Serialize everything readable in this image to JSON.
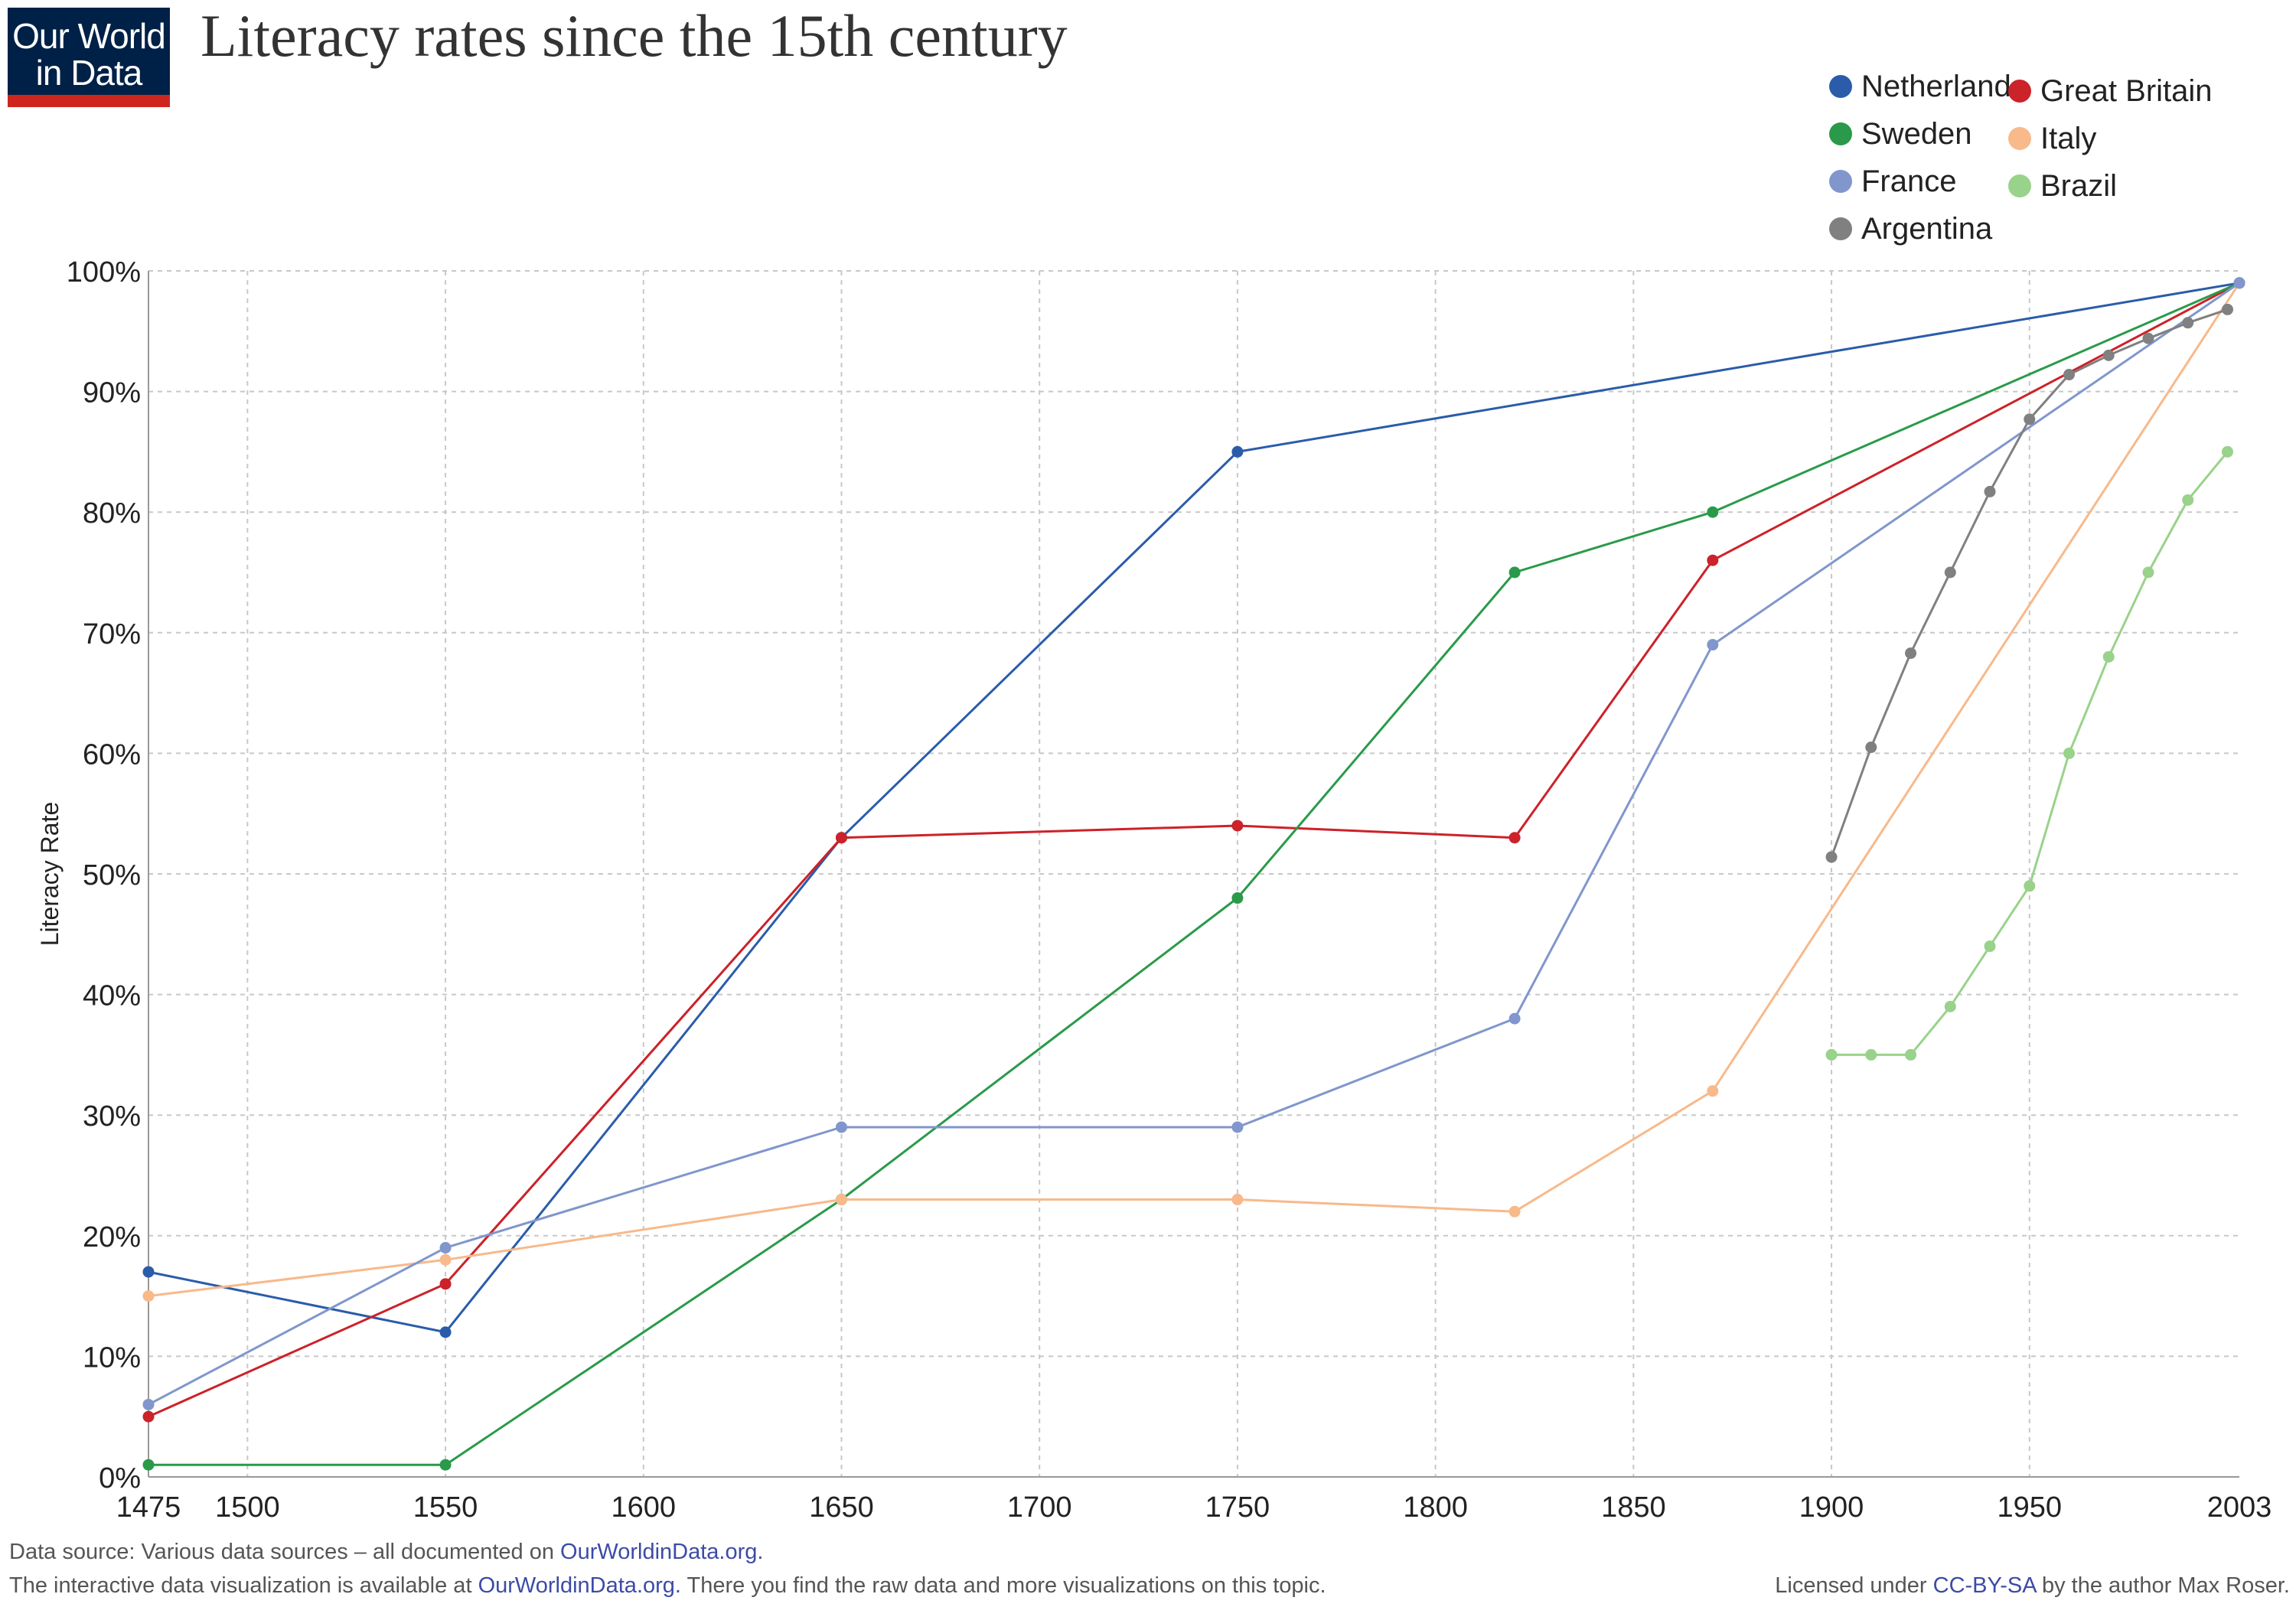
{
  "logo": {
    "line1": "Our World",
    "line2": "in Data"
  },
  "chart_data": {
    "type": "line",
    "title": "Literacy rates since the 15th century",
    "ylabel": "Literacy Rate",
    "xlabel": "",
    "xlim": [
      1475,
      2003
    ],
    "ylim": [
      0,
      100
    ],
    "grid": true,
    "x_ticks": [
      "1475",
      "1500",
      "1550",
      "1600",
      "1650",
      "1700",
      "1750",
      "1800",
      "1850",
      "1900",
      "1950",
      "2003"
    ],
    "y_ticks": [
      "0%",
      "10%",
      "20%",
      "30%",
      "40%",
      "50%",
      "60%",
      "70%",
      "80%",
      "90%",
      "100%"
    ],
    "legend_position": "top-right",
    "series": [
      {
        "name": "Netherlands",
        "color": "#2a5caa",
        "x": [
          1475,
          1550,
          1650,
          1750,
          2003
        ],
        "y": [
          17,
          12,
          53,
          85,
          99
        ]
      },
      {
        "name": "Great Britain",
        "color": "#cc2229",
        "x": [
          1475,
          1550,
          1650,
          1750,
          1820,
          1870,
          2003
        ],
        "y": [
          5,
          16,
          53,
          54,
          53,
          76,
          99
        ]
      },
      {
        "name": "Sweden",
        "color": "#2a9a4a",
        "x": [
          1475,
          1550,
          1650,
          1750,
          1820,
          1870,
          2003
        ],
        "y": [
          1,
          1,
          23,
          48,
          75,
          80,
          99
        ]
      },
      {
        "name": "Italy",
        "color": "#f8b98b",
        "x": [
          1475,
          1550,
          1650,
          1750,
          1820,
          1870,
          2003
        ],
        "y": [
          15,
          18,
          23,
          23,
          22,
          32,
          99
        ]
      },
      {
        "name": "France",
        "color": "#8096cc",
        "x": [
          1475,
          1550,
          1650,
          1750,
          1820,
          1870,
          2003
        ],
        "y": [
          6,
          19,
          29,
          29,
          38,
          69,
          99
        ]
      },
      {
        "name": "Brazil",
        "color": "#99d28a",
        "x": [
          1900,
          1910,
          1920,
          1930,
          1940,
          1950,
          1960,
          1970,
          1980,
          1990,
          2000
        ],
        "y": [
          35,
          35,
          35,
          39,
          44,
          49,
          60,
          68,
          75,
          81,
          85
        ]
      },
      {
        "name": "Argentina",
        "color": "#808080",
        "x": [
          1900,
          1910,
          1920,
          1930,
          1940,
          1950,
          1960,
          1970,
          1980,
          1990,
          2000
        ],
        "y": [
          51.4,
          60.5,
          68.3,
          75,
          81.7,
          87.7,
          91.4,
          93,
          94.4,
          95.7,
          96.8
        ]
      }
    ]
  },
  "legend": {
    "items": [
      {
        "name": "Netherlands",
        "color": "#2a5caa"
      },
      {
        "name": "Sweden",
        "color": "#2a9a4a"
      },
      {
        "name": "France",
        "color": "#8096cc"
      },
      {
        "name": "Argentina",
        "color": "#808080"
      },
      {
        "name": "Great Britain",
        "color": "#cc2229"
      },
      {
        "name": "Italy",
        "color": "#f8b98b"
      },
      {
        "name": "Brazil",
        "color": "#99d28a"
      }
    ]
  },
  "footer": {
    "source_prefix": "Data source: Various data sources – all documented on ",
    "source_link": "OurWorldinData.org.",
    "note_prefix": "The interactive data visualization is available at ",
    "note_link": "OurWorldinData.org.",
    "note_suffix": " There you find the raw data and more visualizations on this topic.",
    "license_prefix": "Licensed under ",
    "license_link": "CC-BY-SA",
    "license_suffix": " by the author Max Roser."
  }
}
